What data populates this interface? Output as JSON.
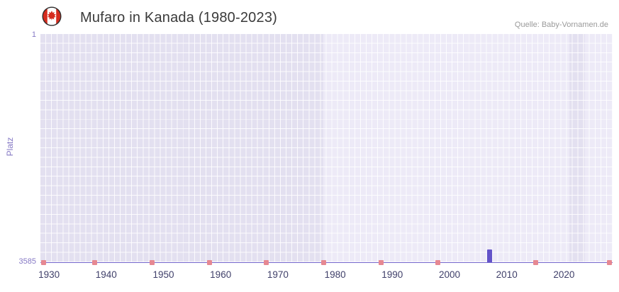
{
  "header": {
    "title": "Mufaro in Kanada (1980-2023)",
    "source": "Quelle: Baby-Vornamen.de"
  },
  "chart_data": {
    "type": "bar",
    "title": "Mufaro in Kanada (1980-2023)",
    "ylabel": "Platz",
    "y_axis": {
      "top_label": "1",
      "bottom_label": "3585",
      "min": 1,
      "max": 3585,
      "inverted": true
    },
    "x_ticks": [
      1930,
      1940,
      1950,
      1960,
      1970,
      1980,
      1990,
      2000,
      2010,
      2020
    ],
    "x_range": [
      1928.5,
      2028.5
    ],
    "series": [
      {
        "name": "Platz",
        "points": [
          {
            "year": 2007,
            "rank": 3383
          }
        ]
      }
    ],
    "no_data_marker_years": [
      1929,
      1938,
      1948,
      1958,
      1968,
      1978,
      1988,
      1998,
      2015,
      2028
    ],
    "bands": [
      {
        "from": 1928.5,
        "to": 1978,
        "shade": "dark"
      },
      {
        "from": 2021,
        "to": 2023.7,
        "shade": "dark"
      }
    ],
    "colors": {
      "plot_light": "#edeaf7",
      "plot_dark": "#e3e0f0",
      "gridline": "rgba(255,255,255,0.85)",
      "bar": "#6353c9",
      "baseline": "#7466cd",
      "no_data_marker": "#e68892",
      "x_label": "#40406a",
      "y_label": "#8679c5",
      "flag_red": "#d52b1e"
    },
    "grid_rows": 24
  }
}
